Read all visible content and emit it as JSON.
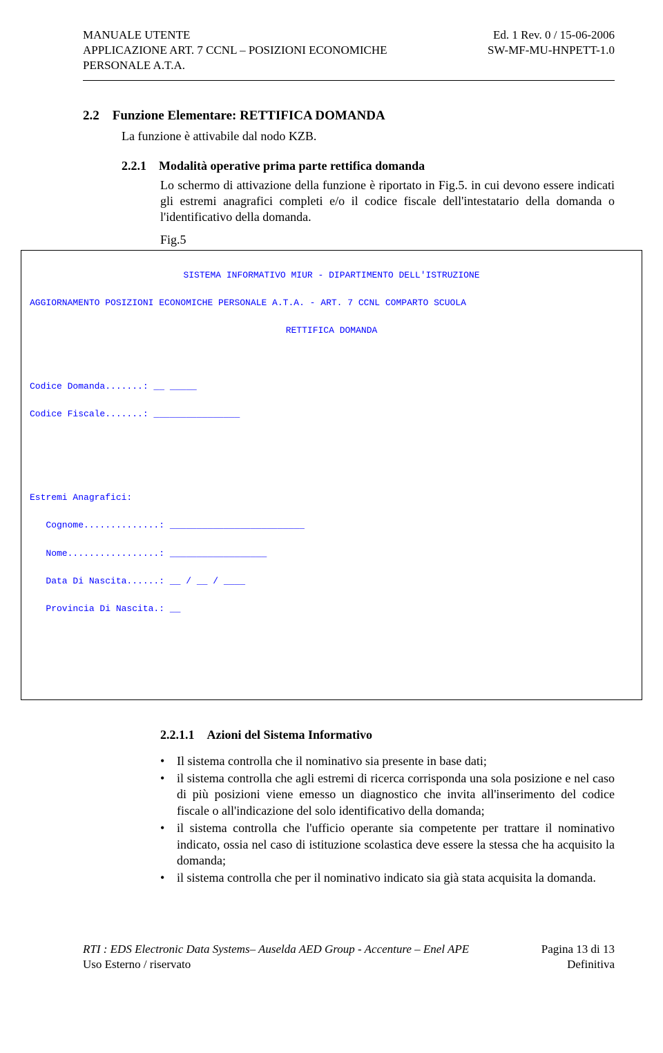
{
  "header": {
    "left_line1": "MANUALE UTENTE",
    "left_line2": "APPLICAZIONE ART. 7 CCNL – POSIZIONI ECONOMICHE",
    "left_line3": "PERSONALE A.T.A.",
    "right_line1": "Ed. 1 Rev. 0 / 15-06-2006",
    "right_line2": "SW-MF-MU-HNPETT-1.0"
  },
  "section": {
    "number": "2.2",
    "title": "Funzione Elementare:  RETTIFICA DOMANDA",
    "subtext": "La funzione è attivabile dal nodo KZB."
  },
  "subsection": {
    "number": "2.2.1",
    "title": "Modalità operative prima parte rettifica domanda",
    "para": "Lo schermo di attivazione della funzione è riportato in Fig.5. in cui devono essere indicati gli estremi anagrafici completi  e/o il codice fiscale dell'intestatario della domanda o l'identificativo della domanda."
  },
  "figure": {
    "label": "Fig.5"
  },
  "terminal": {
    "line1": "SISTEMA INFORMATIVO MIUR - DIPARTIMENTO DELL'ISTRUZIONE",
    "line2": "AGGIORNAMENTO POSIZIONI ECONOMICHE PERSONALE A.T.A. - ART. 7 CCNL COMPARTO SCUOLA",
    "line3": "RETTIFICA DOMANDA",
    "line4": "Codice Domanda.......: __ _____",
    "line5": "Codice Fiscale.......: ________________",
    "line6": "Estremi Anagrafici:",
    "line7": "   Cognome..............: _________________________",
    "line8": "   Nome.................: __________________",
    "line9": "   Data Di Nascita......: __ / __ / ____",
    "line10": "   Provincia Di Nascita.: __"
  },
  "subsubsection": {
    "number": "2.2.1.1",
    "title": "Azioni del Sistema Informativo"
  },
  "bullets": [
    "Il sistema controlla che il nominativo sia presente in base dati;",
    "il sistema controlla che agli estremi di ricerca corrisponda una sola posizione e nel caso di più posizioni viene emesso un diagnostico che invita all'inserimento del codice fiscale o all'indicazione del solo identificativo della domanda;",
    "il sistema controlla che l'ufficio operante sia competente per trattare il nominativo indicato, ossia nel caso di istituzione scolastica deve essere la stessa che ha acquisito la domanda;",
    "il sistema controlla che per il nominativo indicato sia già stata acquisita la domanda."
  ],
  "footer": {
    "left_line1": "RTI : EDS Electronic Data Systems– Auselda AED Group - Accenture – Enel APE",
    "left_line2": "Uso Esterno  /  riservato",
    "right_line1": "Pagina 13 di 13",
    "right_line2": "Definitiva"
  }
}
